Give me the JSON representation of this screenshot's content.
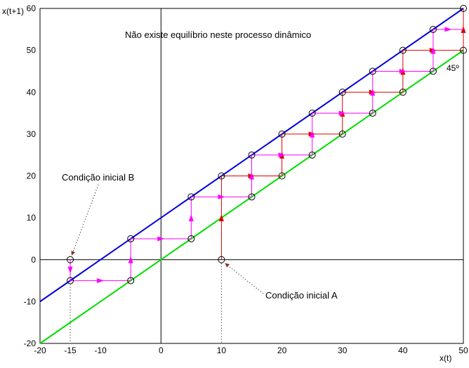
{
  "chart_data": {
    "type": "line",
    "title": "Não existe equilíbrio neste processo dinâmico",
    "xlabel": "x(t)",
    "ylabel": "x(t+1)",
    "xlim": [
      -20,
      50
    ],
    "ylim": [
      -20,
      60
    ],
    "xticks": [
      "-20",
      "-15",
      "-10",
      "0",
      "10",
      "20",
      "30",
      "40",
      "50"
    ],
    "xtick_values": [
      -20,
      -15,
      -10,
      0,
      10,
      20,
      30,
      40,
      50
    ],
    "yticks": [
      "-20",
      "-10",
      "0",
      "10",
      "20",
      "30",
      "40",
      "50",
      "60"
    ],
    "ytick_values": [
      -20,
      -10,
      0,
      10,
      20,
      30,
      40,
      50,
      60
    ],
    "grid": false,
    "colors": {
      "blue_line": "#0000dd",
      "green_line": "#00dd00",
      "path_a": "#dd0000",
      "path_b": "#ff00ff",
      "markers": "#000000",
      "axes": "#000000"
    },
    "lines": [
      {
        "color": "blue",
        "x": [
          -20,
          50
        ],
        "y": [
          -10,
          60
        ]
      },
      {
        "color": "green",
        "x": [
          -20,
          50
        ],
        "y": [
          -20,
          50
        ]
      }
    ],
    "cobweb": [
      {
        "color": "red",
        "start": [
          10,
          0
        ],
        "points": [
          [
            10,
            0
          ],
          [
            10,
            20
          ],
          [
            20,
            20
          ],
          [
            20,
            30
          ],
          [
            30,
            30
          ],
          [
            30,
            40
          ],
          [
            40,
            40
          ],
          [
            40,
            50
          ],
          [
            50,
            50
          ],
          [
            50,
            60
          ]
        ]
      },
      {
        "color": "magenta",
        "start": [
          -15,
          0
        ],
        "points": [
          [
            -15,
            0
          ],
          [
            -15,
            -5
          ],
          [
            -5,
            -5
          ],
          [
            -5,
            5
          ],
          [
            5,
            5
          ],
          [
            5,
            15
          ],
          [
            15,
            15
          ],
          [
            15,
            25
          ],
          [
            25,
            25
          ],
          [
            25,
            35
          ],
          [
            35,
            35
          ],
          [
            35,
            45
          ],
          [
            45,
            45
          ],
          [
            45,
            55
          ],
          [
            50,
            55
          ]
        ]
      }
    ],
    "annotations": [
      {
        "text": "Condição inicial B",
        "point": [
          -15,
          0
        ]
      },
      {
        "text": "Condição inicial A",
        "point": [
          10,
          0
        ]
      },
      {
        "text": "45º",
        "point": [
          50,
          50
        ]
      }
    ]
  }
}
